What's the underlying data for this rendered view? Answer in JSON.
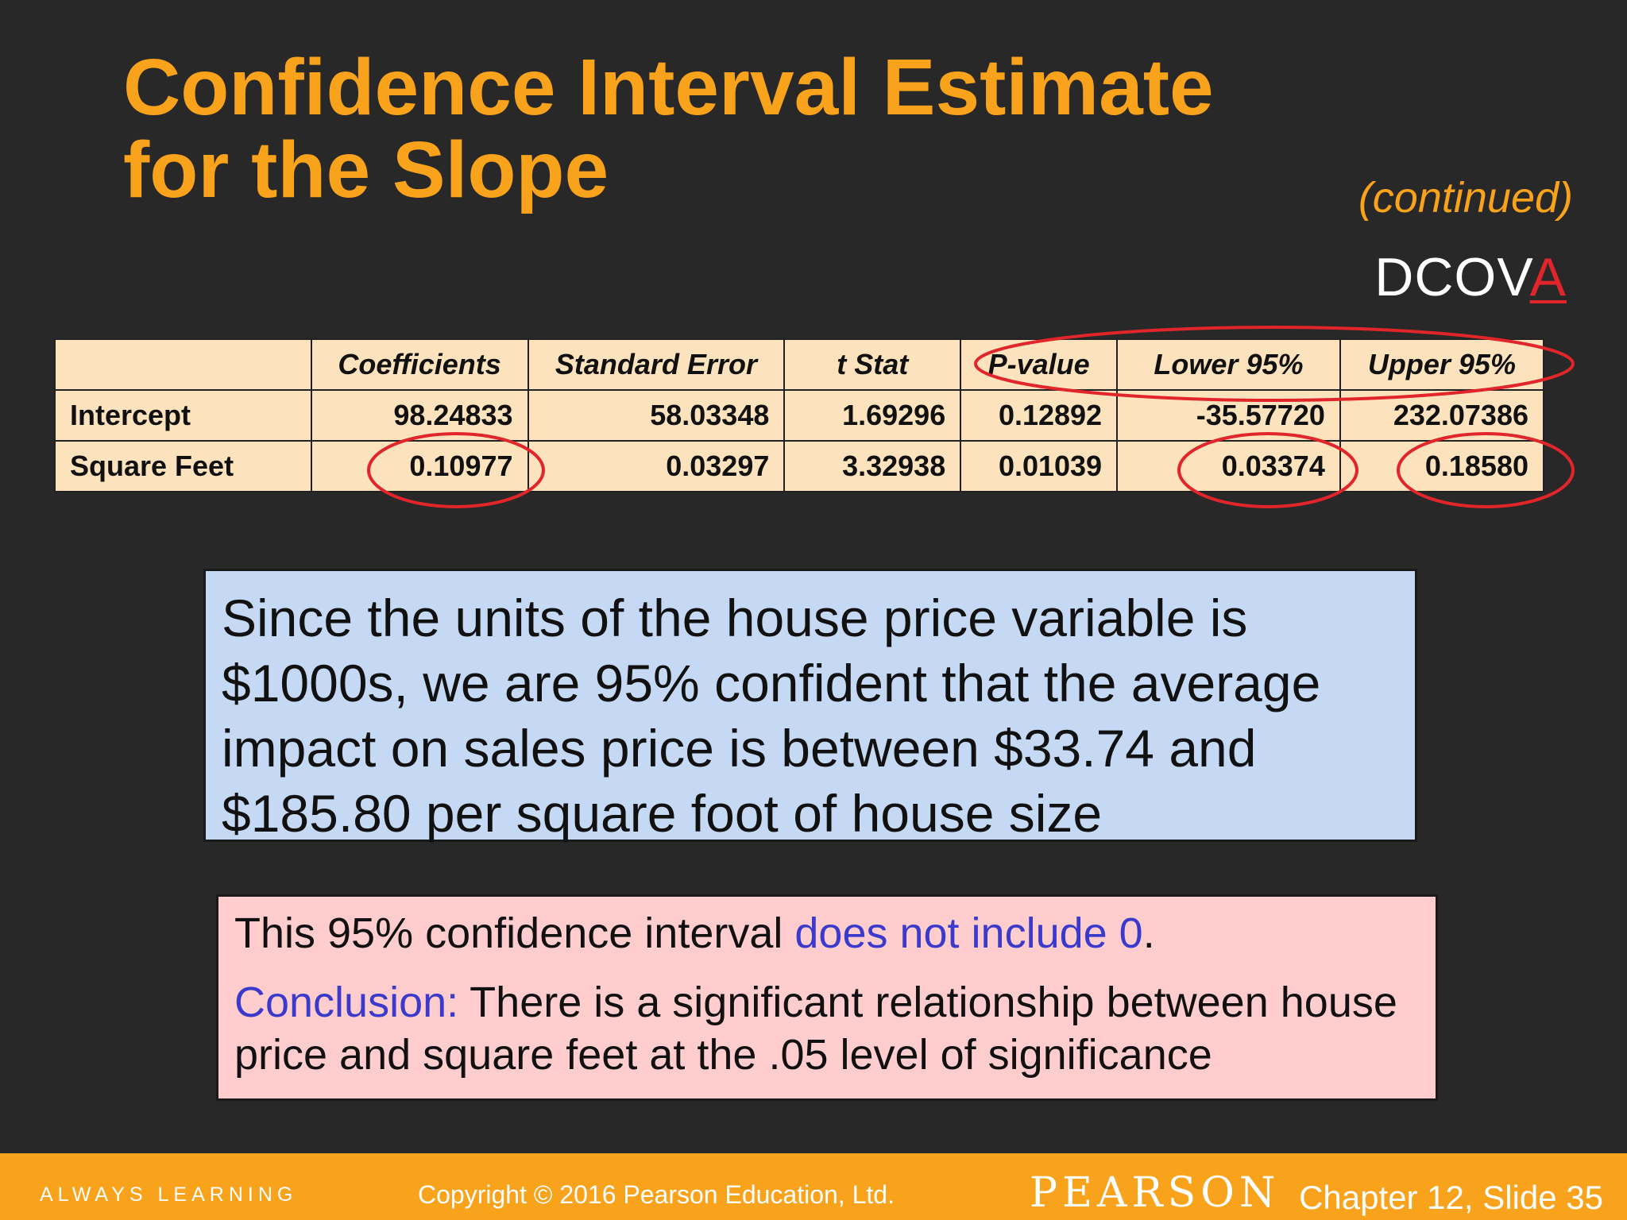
{
  "slide": {
    "title_line1": "Confidence Interval Estimate",
    "title_line2": "for the Slope",
    "continued": "(continued)",
    "dcova_prefix": "DCOV",
    "dcova_highlight": "A"
  },
  "table": {
    "headers": [
      "",
      "Coefficients",
      "Standard Error",
      "t Stat",
      "P-value",
      "Lower 95%",
      "Upper 95%"
    ],
    "rows": [
      [
        "Intercept",
        "98.24833",
        "58.03348",
        "1.69296",
        "0.12892",
        "-35.57720",
        "232.07386"
      ],
      [
        "Square Feet",
        "0.10977",
        "0.03297",
        "3.32938",
        "0.01039",
        "0.03374",
        "0.18580"
      ]
    ]
  },
  "explanation": "Since the units of the house price variable is $1000s, we are 95% confident that the average impact on sales price is between $33.74 and $185.80 per square foot of house size",
  "conclusion_box": {
    "line1_prefix": "This 95% confidence interval ",
    "line1_highlight": "does not include 0",
    "line1_suffix": ".",
    "conclusion_label": "Conclusion:",
    "conclusion_text": " There is a significant relationship between house price and square feet at the .05 level of significance"
  },
  "footer": {
    "tagline": "ALWAYS LEARNING",
    "copyright": "Copyright © 2016 Pearson Education, Ltd.",
    "brand": "PEARSON",
    "slide_ref": "Chapter 12, Slide 35"
  },
  "colors": {
    "background": "#282828",
    "title": "#F9A21B",
    "highlight_ring": "#E0252B",
    "table_fill": "#FDE2BE",
    "blue_box": "#C6D9F4",
    "pink_box": "#FFCDCD",
    "accent_text": "#3A3ACC",
    "footer_bar": "#F9A21B"
  }
}
